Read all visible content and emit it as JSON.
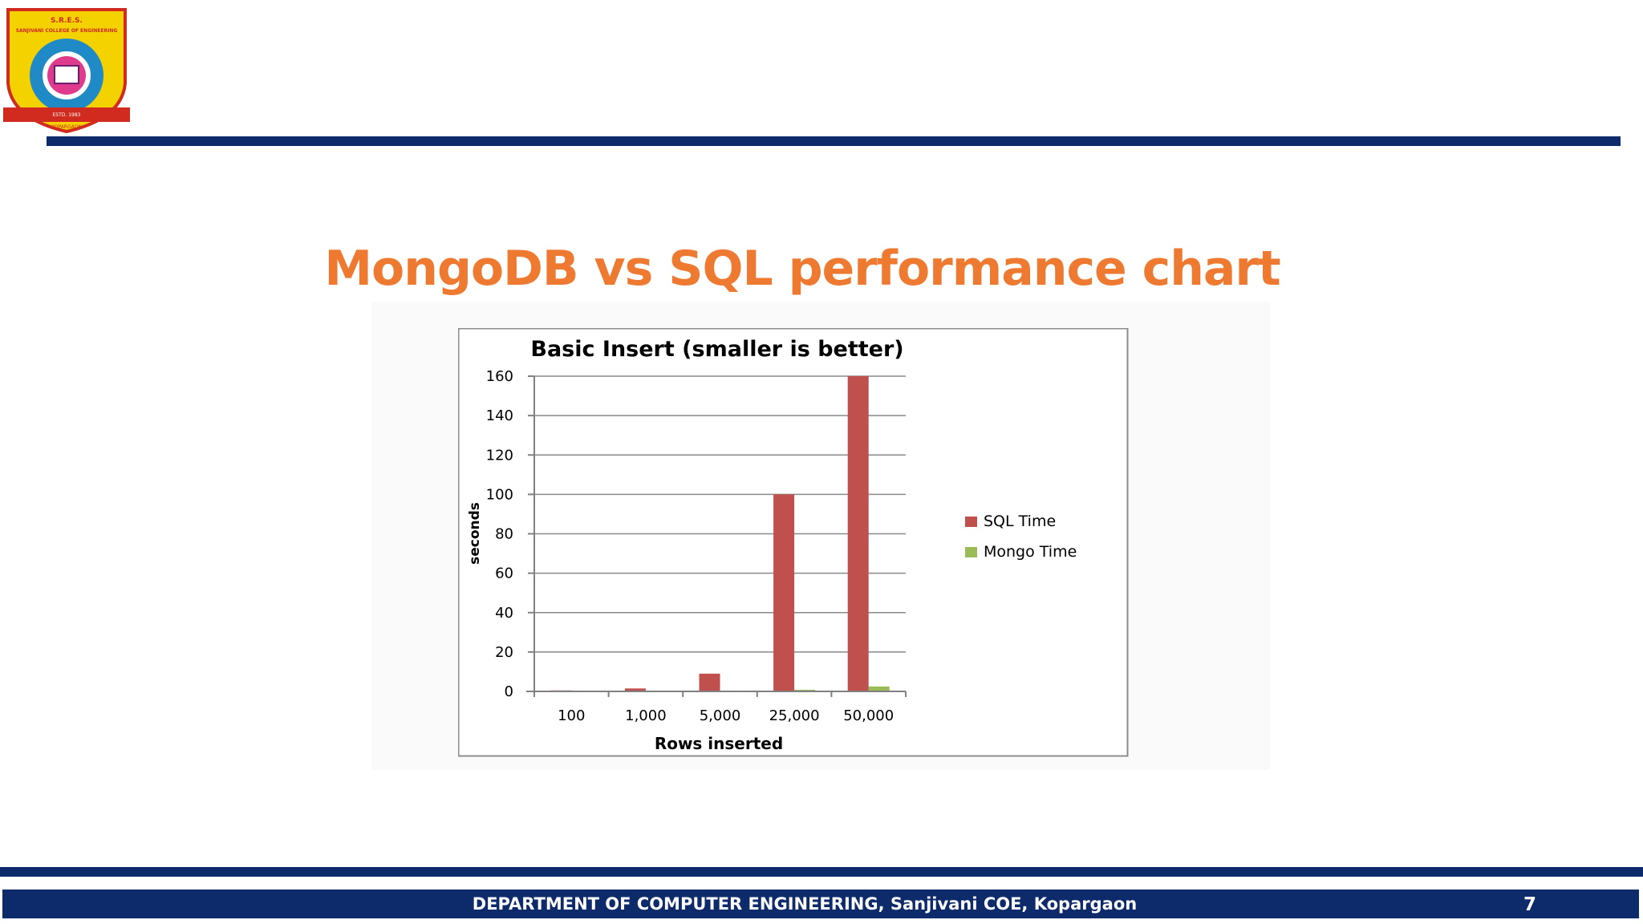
{
  "logo": {
    "line1": "S.R.E.S.",
    "line2": "SANJIVANI COLLEGE OF ENGINEERING",
    "line3": "ESTD. 1983",
    "line4": "KOPARGAON"
  },
  "slide": {
    "title": "MongoDB vs SQL performance chart"
  },
  "colors": {
    "brand_navy": "#0d2a6b",
    "title_orange": "#ee7a32",
    "sql_bar": "#c0504d",
    "mongo_bar": "#9bbb59"
  },
  "chart_data": {
    "type": "bar",
    "title": "Basic Insert (smaller is better)",
    "xlabel": "Rows inserted",
    "ylabel": "seconds",
    "categories": [
      "100",
      "1,000",
      "5,000",
      "25,000",
      "50,000"
    ],
    "series": [
      {
        "name": "SQL Time",
        "values": [
          0.5,
          1.5,
          9,
          100,
          160
        ]
      },
      {
        "name": "Mongo Time",
        "values": [
          0.3,
          0.4,
          0.4,
          0.8,
          2.5
        ]
      }
    ],
    "ylim": [
      0,
      160
    ],
    "yticks": [
      0,
      20,
      40,
      60,
      80,
      100,
      120,
      140,
      160
    ],
    "grid": true,
    "legend_position": "right"
  },
  "footer": {
    "text": "DEPARTMENT OF COMPUTER ENGINEERING,  Sanjivani COE, Kopargaon",
    "page_number": "7"
  }
}
